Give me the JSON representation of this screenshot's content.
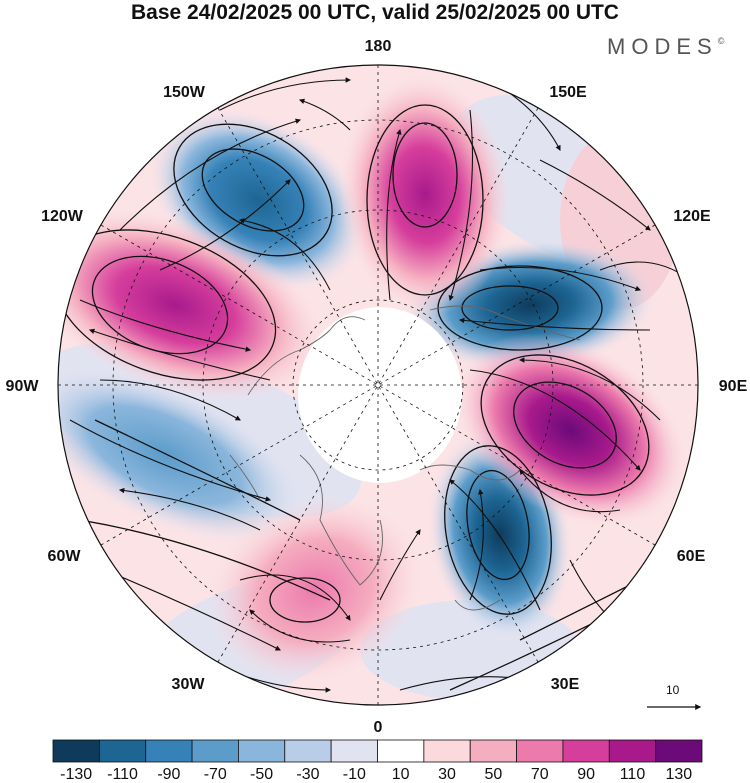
{
  "title": "Base 24/02/2025 00 UTC, valid 25/02/2025 00 UTC",
  "logo": {
    "text": "MODES",
    "mark": "©"
  },
  "lon_labels": [
    "180",
    "150E",
    "120E",
    "90E",
    "60E",
    "30E",
    "0",
    "30W",
    "60W",
    "90W",
    "120W",
    "150W"
  ],
  "colorbar": {
    "tick_labels": [
      "-130",
      "-110",
      "-90",
      "-70",
      "-50",
      "-30",
      "-10",
      "10",
      "30",
      "50",
      "70",
      "90",
      "110",
      "130"
    ],
    "colors": [
      "#0e3b5c",
      "#1d6593",
      "#3682b8",
      "#5b9cca",
      "#8bb6dc",
      "#b9cde8",
      "#e2e3f1",
      "#ffffff",
      "#fbd9dc",
      "#f5adc0",
      "#ec7aac",
      "#d63e9c",
      "#a81a8c",
      "#6b0a78"
    ]
  },
  "reference_vector": {
    "label": "10"
  }
}
